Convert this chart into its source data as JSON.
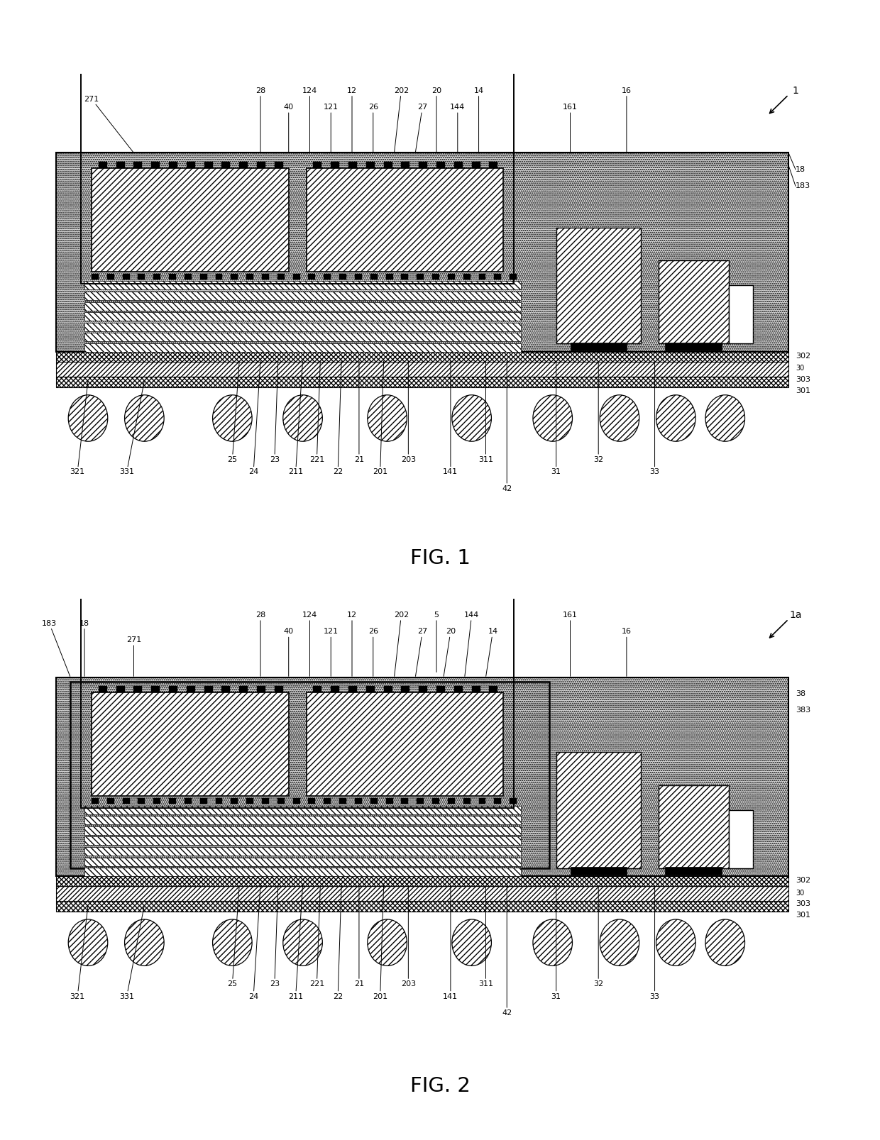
{
  "fig_width": 12.4,
  "fig_height": 16.07,
  "bg_color": "#ffffff",
  "fig1_label": "FIG. 1",
  "fig2_label": "FIG. 2",
  "stipple_color": "#d8d8d8",
  "inner_stipple": "#d0d0d0"
}
